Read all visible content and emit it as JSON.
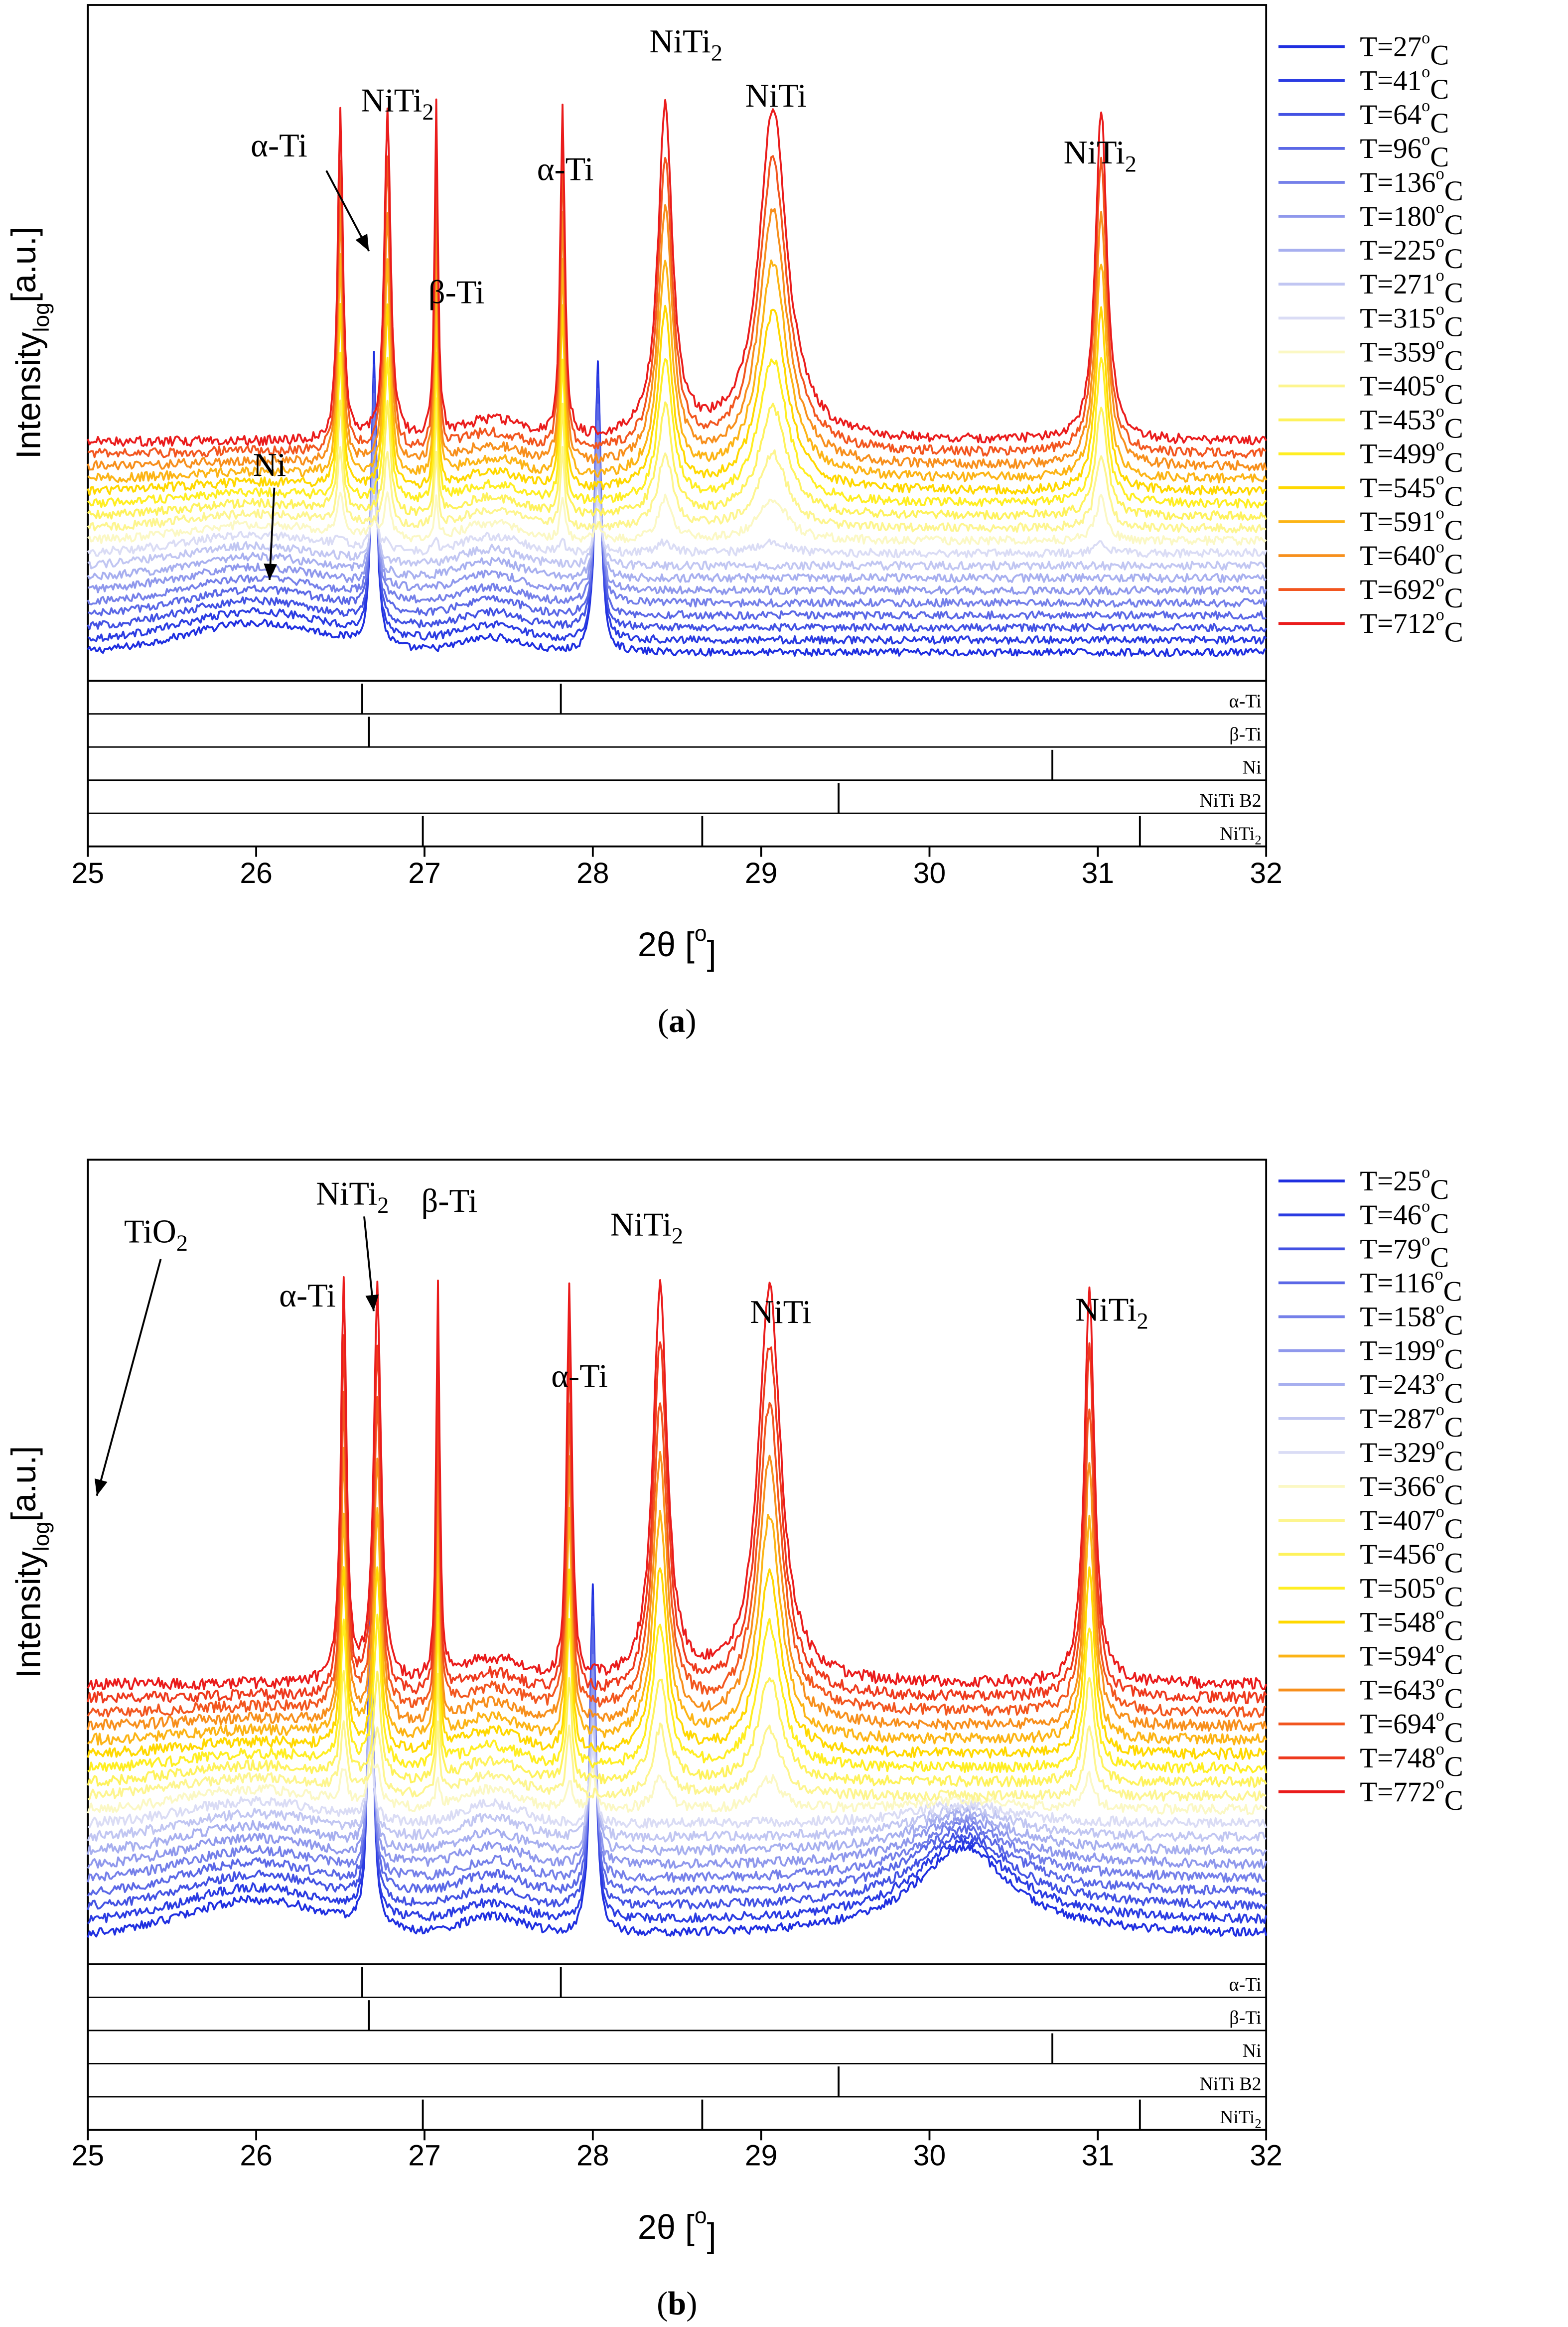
{
  "chart_data": [
    {
      "type": "line",
      "panel_label": "(a)",
      "panel_letter": "a",
      "title": "",
      "xlabel": "2θ [°]",
      "xlabel_parts": {
        "base": "2θ [",
        "sup": "o",
        "end": "]"
      },
      "ylabel": "Intensity_log [a.u.]",
      "ylabel_parts": {
        "base": "Intensity",
        "sub": "log",
        "end": "[a.u.]"
      },
      "xlim": [
        25,
        32
      ],
      "x_ticks": [
        "25",
        "26",
        "27",
        "28",
        "29",
        "30",
        "31",
        "32"
      ],
      "legend_position": "right",
      "series": [
        {
          "name": "T=27°C",
          "temp": "27",
          "color": "#1f2fe0"
        },
        {
          "name": "T=41°C",
          "temp": "41",
          "color": "#2b3ce2"
        },
        {
          "name": "T=64°C",
          "temp": "64",
          "color": "#4352e3"
        },
        {
          "name": "T=96°C",
          "temp": "96",
          "color": "#5b68e6"
        },
        {
          "name": "T=136°C",
          "temp": "136",
          "color": "#7580e9"
        },
        {
          "name": "T=180°C",
          "temp": "180",
          "color": "#8f98ec"
        },
        {
          "name": "T=225°C",
          "temp": "225",
          "color": "#a7afef"
        },
        {
          "name": "T=271°C",
          "temp": "271",
          "color": "#c1c6f2"
        },
        {
          "name": "T=315°C",
          "temp": "315",
          "color": "#dadcf5"
        },
        {
          "name": "T=359°C",
          "temp": "359",
          "color": "#fbf8c4"
        },
        {
          "name": "T=405°C",
          "temp": "405",
          "color": "#fdf58f"
        },
        {
          "name": "T=453°C",
          "temp": "453",
          "color": "#fef25c"
        },
        {
          "name": "T=499°C",
          "temp": "499",
          "color": "#ffee22"
        },
        {
          "name": "T=545°C",
          "temp": "545",
          "color": "#ffd800"
        },
        {
          "name": "T=591°C",
          "temp": "591",
          "color": "#fcb416"
        },
        {
          "name": "T=640°C",
          "temp": "640",
          "color": "#f78f1c"
        },
        {
          "name": "T=692°C",
          "temp": "692",
          "color": "#f2561f"
        },
        {
          "name": "T=712°C",
          "temp": "712",
          "color": "#ea1c1c"
        }
      ],
      "peaks": [
        {
          "pos": 26.7,
          "w": 0.018,
          "state": "low"
        },
        {
          "pos": 28.03,
          "w": 0.02,
          "state": "low"
        },
        {
          "pos": 26.5,
          "w": 0.018,
          "state": "high"
        },
        {
          "pos": 26.78,
          "w": 0.022,
          "state": "high"
        },
        {
          "pos": 27.07,
          "w": 0.012,
          "state": "high"
        },
        {
          "pos": 27.82,
          "w": 0.016,
          "state": "high"
        },
        {
          "pos": 28.43,
          "w": 0.05,
          "state": "high"
        },
        {
          "pos": 29.07,
          "w": 0.1,
          "state": "high"
        },
        {
          "pos": 31.02,
          "w": 0.04,
          "state": "high"
        }
      ],
      "annotations": [
        {
          "base": "α-Ti"
        },
        {
          "base": "NiTi",
          "sub": "2"
        },
        {
          "base": "β-Ti"
        },
        {
          "base": "α-Ti"
        },
        {
          "base": "NiTi",
          "sub": "2"
        },
        {
          "base": "NiTi"
        },
        {
          "base": "NiTi",
          "sub": "2"
        },
        {
          "base": "Ni"
        }
      ],
      "reference_patterns": [
        {
          "label": "α-Ti",
          "positions": [
            26.63,
            27.81
          ]
        },
        {
          "label": "β-Ti",
          "positions": [
            26.67
          ]
        },
        {
          "label": "Ni",
          "positions": [
            30.73
          ]
        },
        {
          "label": "NiTi B2",
          "positions": [
            29.46
          ]
        },
        {
          "label": "NiTi2",
          "label_base": "NiTi",
          "label_sub": "2",
          "positions": [
            26.99,
            28.65,
            31.25
          ]
        }
      ]
    },
    {
      "type": "line",
      "panel_label": "(b)",
      "panel_letter": "b",
      "title": "",
      "xlabel": "2θ [°]",
      "xlabel_parts": {
        "base": "2θ [",
        "sup": "o",
        "end": "]"
      },
      "ylabel": "Intensity_log [a.u.]",
      "ylabel_parts": {
        "base": "Intensity",
        "sub": "log",
        "end": "[a.u.]"
      },
      "xlim": [
        25,
        32
      ],
      "x_ticks": [
        "25",
        "26",
        "27",
        "28",
        "29",
        "30",
        "31",
        "32"
      ],
      "legend_position": "right",
      "series": [
        {
          "name": "T=25°C",
          "temp": "25",
          "color": "#1f2fe0"
        },
        {
          "name": "T=46°C",
          "temp": "46",
          "color": "#2b3ce2"
        },
        {
          "name": "T=79°C",
          "temp": "79",
          "color": "#4352e3"
        },
        {
          "name": "T=116°C",
          "temp": "116",
          "color": "#5b68e6"
        },
        {
          "name": "T=158°C",
          "temp": "158",
          "color": "#7580e9"
        },
        {
          "name": "T=199°C",
          "temp": "199",
          "color": "#8f98ec"
        },
        {
          "name": "T=243°C",
          "temp": "243",
          "color": "#a7afef"
        },
        {
          "name": "T=287°C",
          "temp": "287",
          "color": "#c1c6f2"
        },
        {
          "name": "T=329°C",
          "temp": "329",
          "color": "#dadcf5"
        },
        {
          "name": "T=366°C",
          "temp": "366",
          "color": "#fbf8c4"
        },
        {
          "name": "T=407°C",
          "temp": "407",
          "color": "#fdf58f"
        },
        {
          "name": "T=456°C",
          "temp": "456",
          "color": "#fef25c"
        },
        {
          "name": "T=505°C",
          "temp": "505",
          "color": "#ffee22"
        },
        {
          "name": "T=548°C",
          "temp": "548",
          "color": "#ffd800"
        },
        {
          "name": "T=594°C",
          "temp": "594",
          "color": "#fcb416"
        },
        {
          "name": "T=643°C",
          "temp": "643",
          "color": "#f78f1c"
        },
        {
          "name": "T=694°C",
          "temp": "694",
          "color": "#f2561f"
        },
        {
          "name": "T=748°C",
          "temp": "748",
          "color": "#ee3a1e"
        },
        {
          "name": "T=772°C",
          "temp": "772",
          "color": "#ea1c1c"
        }
      ],
      "peaks": [
        {
          "pos": 26.68,
          "w": 0.018,
          "state": "low"
        },
        {
          "pos": 28.0,
          "w": 0.02,
          "state": "low"
        },
        {
          "pos": 30.2,
          "w": 0.35,
          "state": "low"
        },
        {
          "pos": 26.52,
          "w": 0.02,
          "state": "high"
        },
        {
          "pos": 26.72,
          "w": 0.025,
          "state": "high"
        },
        {
          "pos": 27.08,
          "w": 0.012,
          "state": "high"
        },
        {
          "pos": 27.86,
          "w": 0.018,
          "state": "high"
        },
        {
          "pos": 28.4,
          "w": 0.05,
          "state": "high"
        },
        {
          "pos": 29.05,
          "w": 0.08,
          "state": "high"
        },
        {
          "pos": 30.95,
          "w": 0.035,
          "state": "high"
        }
      ],
      "annotations": [
        {
          "base": "TiO",
          "sub": "2"
        },
        {
          "base": "α-Ti"
        },
        {
          "base": "NiTi",
          "sub": "2"
        },
        {
          "base": "β-Ti"
        },
        {
          "base": "α-Ti"
        },
        {
          "base": "NiTi",
          "sub": "2"
        },
        {
          "base": "NiTi"
        },
        {
          "base": "NiTi",
          "sub": "2"
        }
      ],
      "reference_patterns": [
        {
          "label": "α-Ti",
          "positions": [
            26.63,
            27.81
          ]
        },
        {
          "label": "β-Ti",
          "positions": [
            26.67
          ]
        },
        {
          "label": "Ni",
          "positions": [
            30.73
          ]
        },
        {
          "label": "NiTi B2",
          "positions": [
            29.46
          ]
        },
        {
          "label": "NiTi2",
          "label_base": "NiTi",
          "label_sub": "2",
          "positions": [
            26.99,
            28.65,
            31.25
          ]
        }
      ]
    }
  ]
}
